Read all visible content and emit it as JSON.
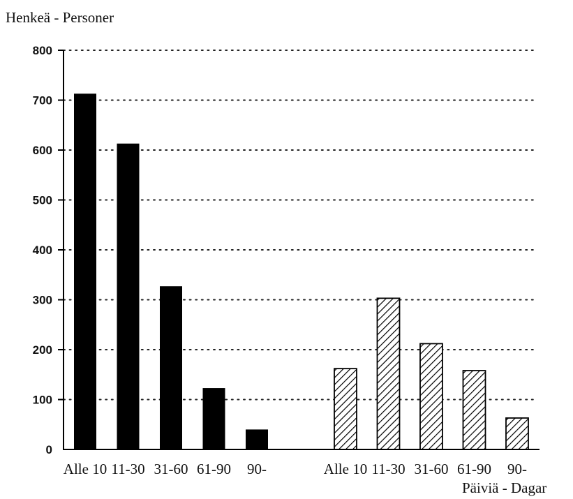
{
  "chart_data": {
    "type": "bar",
    "ylabel": "Henkeä - Personer",
    "xlabel": "Päiviä - Dagar",
    "ylim": [
      0,
      800
    ],
    "yticks": [
      0,
      100,
      200,
      300,
      400,
      500,
      600,
      700,
      800
    ],
    "grid": "dotted horizontal",
    "groups": [
      {
        "fill": "solid black",
        "categories": [
          "Alle 10",
          "11-30",
          "31-60",
          "61-90",
          "90-"
        ],
        "values": [
          713,
          613,
          327,
          123,
          40
        ]
      },
      {
        "fill": "hatched",
        "categories": [
          "Alle 10",
          "11-30",
          "31-60",
          "61-90",
          "90-"
        ],
        "values": [
          162,
          303,
          212,
          158,
          63
        ]
      }
    ],
    "colors": {
      "bar": "#000000",
      "hatch": "#000000",
      "grid": "#222222"
    }
  }
}
